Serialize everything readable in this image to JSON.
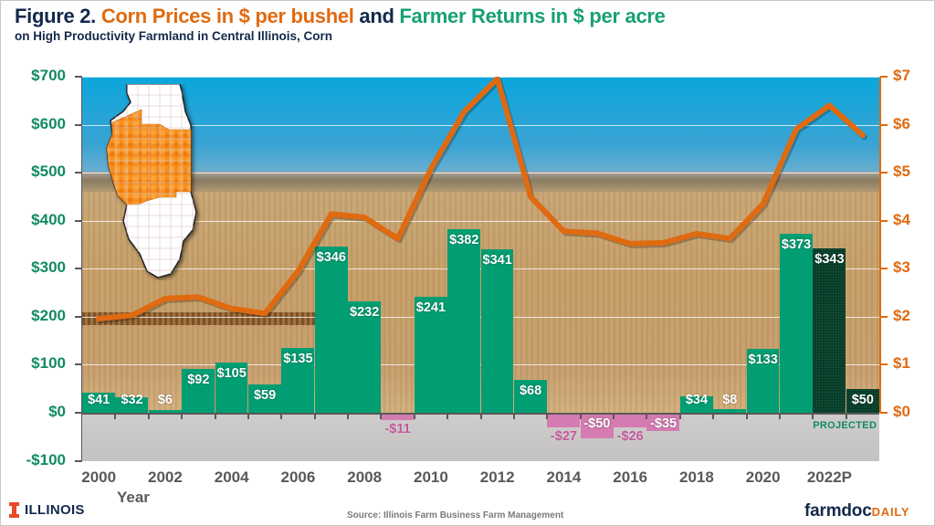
{
  "title": {
    "prefix": "Figure 2.",
    "part_orange": "Corn Prices in $ per bushel",
    "joiner": "and",
    "part_green": "Farmer Returns in $ per acre",
    "subtitle": "on High Productivity Farmland in Central Illinois,  Corn"
  },
  "colors": {
    "returns_positive": "#009e72",
    "returns_negative": "#d47bb1",
    "returns_projected": "#0c3c2a",
    "price_line": "#e06a10",
    "title_dark": "#13294b"
  },
  "axes": {
    "left_ticks": [
      "$700",
      "$600",
      "$500",
      "$400",
      "$300",
      "$200",
      "$100",
      "$0",
      "-$100"
    ],
    "right_ticks": [
      "$7",
      "$6",
      "$5",
      "$4",
      "$3",
      "$2",
      "$1",
      "$0"
    ],
    "x_ticks": [
      "2000",
      "2002",
      "2004",
      "2006",
      "2008",
      "2010",
      "2012",
      "2014",
      "2016",
      "2018",
      "2020",
      "2022P"
    ],
    "x_title": "Year"
  },
  "projected_label": "PROJECTED",
  "map_label": "illinois-central-region-map",
  "footer": {
    "logo_text": "ILLINOIS",
    "source": "Source:  Illinois Farm Business Farm Management",
    "brand_main": "farmdoc",
    "brand_suffix": "DAILY"
  },
  "chart_data": {
    "type": "bar",
    "title": "Figure 2. Corn Prices in $ per bushel and Farmer Returns in $ per acre",
    "subtitle": "on High Productivity Farmland in Central Illinois, Corn",
    "xlabel": "Year",
    "ylabel": "Farmer Returns ($ per acre)",
    "y2label": "Corn Price ($ per bushel)",
    "ylim": [
      -100,
      700
    ],
    "y2lim": [
      0,
      7
    ],
    "grid": true,
    "categories": [
      "2000",
      "2001",
      "2002",
      "2003",
      "2004",
      "2005",
      "2006",
      "2007",
      "2008",
      "2009",
      "2010",
      "2011",
      "2012",
      "2013",
      "2014",
      "2015",
      "2016",
      "2017",
      "2018",
      "2019",
      "2020",
      "2021",
      "2022P",
      "2023P"
    ],
    "series": [
      {
        "name": "Farmer Returns ($ per acre)",
        "type": "bar",
        "axis": "left",
        "values": [
          41,
          32,
          6,
          92,
          105,
          59,
          135,
          346,
          232,
          -11,
          241,
          382,
          341,
          68,
          -27,
          -50,
          -26,
          -35,
          34,
          8,
          133,
          373,
          343,
          50
        ],
        "labels": [
          "$41",
          "$32",
          "$6",
          "$92",
          "$105",
          "$59",
          "$135",
          "$346",
          "$232",
          "-$11",
          "$241",
          "$382",
          "$341",
          "$68",
          "-$27",
          "-$50",
          "-$26",
          "-$35",
          "$34",
          "$8",
          "$133",
          "$373",
          "$343",
          "$50"
        ],
        "projected": [
          false,
          false,
          false,
          false,
          false,
          false,
          false,
          false,
          false,
          false,
          false,
          false,
          false,
          false,
          false,
          false,
          false,
          false,
          false,
          false,
          false,
          false,
          true,
          true
        ]
      },
      {
        "name": "Corn Price ($ per bushel)",
        "type": "line",
        "axis": "right",
        "values": [
          1.96,
          2.03,
          2.38,
          2.41,
          2.17,
          2.07,
          2.95,
          4.14,
          4.07,
          3.63,
          5.08,
          6.27,
          6.96,
          4.5,
          3.78,
          3.74,
          3.52,
          3.54,
          3.73,
          3.63,
          4.35,
          5.91,
          6.4,
          5.78
        ]
      }
    ],
    "annotations": [
      "PROJECTED"
    ]
  }
}
